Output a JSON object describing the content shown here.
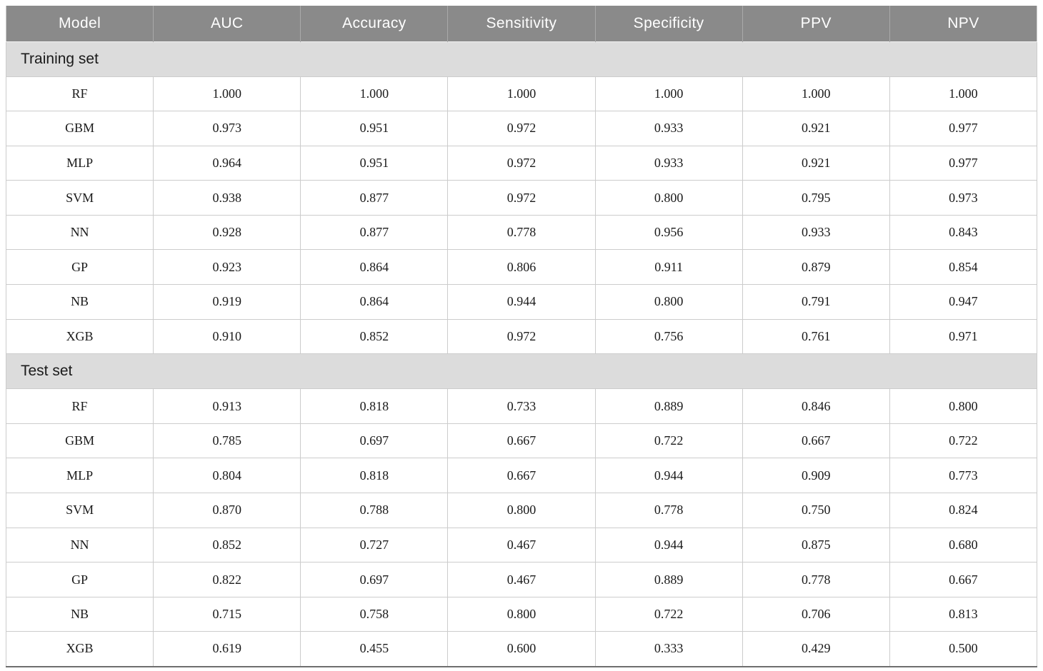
{
  "header": {
    "columns": [
      "Model",
      "AUC",
      "Accuracy",
      "Sensitivity",
      "Specificity",
      "PPV",
      "NPV"
    ]
  },
  "sections": [
    {
      "label": "Training set",
      "rows": [
        {
          "model": "RF",
          "values": [
            "1.000",
            "1.000",
            "1.000",
            "1.000",
            "1.000",
            "1.000"
          ]
        },
        {
          "model": "GBM",
          "values": [
            "0.973",
            "0.951",
            "0.972",
            "0.933",
            "0.921",
            "0.977"
          ]
        },
        {
          "model": "MLP",
          "values": [
            "0.964",
            "0.951",
            "0.972",
            "0.933",
            "0.921",
            "0.977"
          ]
        },
        {
          "model": "SVM",
          "values": [
            "0.938",
            "0.877",
            "0.972",
            "0.800",
            "0.795",
            "0.973"
          ]
        },
        {
          "model": "NN",
          "values": [
            "0.928",
            "0.877",
            "0.778",
            "0.956",
            "0.933",
            "0.843"
          ]
        },
        {
          "model": "GP",
          "values": [
            "0.923",
            "0.864",
            "0.806",
            "0.911",
            "0.879",
            "0.854"
          ]
        },
        {
          "model": "NB",
          "values": [
            "0.919",
            "0.864",
            "0.944",
            "0.800",
            "0.791",
            "0.947"
          ]
        },
        {
          "model": "XGB",
          "values": [
            "0.910",
            "0.852",
            "0.972",
            "0.756",
            "0.761",
            "0.971"
          ]
        }
      ]
    },
    {
      "label": "Test set",
      "rows": [
        {
          "model": "RF",
          "values": [
            "0.913",
            "0.818",
            "0.733",
            "0.889",
            "0.846",
            "0.800"
          ]
        },
        {
          "model": "GBM",
          "values": [
            "0.785",
            "0.697",
            "0.667",
            "0.722",
            "0.667",
            "0.722"
          ]
        },
        {
          "model": "MLP",
          "values": [
            "0.804",
            "0.818",
            "0.667",
            "0.944",
            "0.909",
            "0.773"
          ]
        },
        {
          "model": "SVM",
          "values": [
            "0.870",
            "0.788",
            "0.800",
            "0.778",
            "0.750",
            "0.824"
          ]
        },
        {
          "model": "NN",
          "values": [
            "0.852",
            "0.727",
            "0.467",
            "0.944",
            "0.875",
            "0.680"
          ]
        },
        {
          "model": "GP",
          "values": [
            "0.822",
            "0.697",
            "0.467",
            "0.889",
            "0.778",
            "0.667"
          ]
        },
        {
          "model": "NB",
          "values": [
            "0.715",
            "0.758",
            "0.800",
            "0.722",
            "0.706",
            "0.813"
          ]
        },
        {
          "model": "XGB",
          "values": [
            "0.619",
            "0.455",
            "0.600",
            "0.333",
            "0.429",
            "0.500"
          ]
        }
      ]
    }
  ],
  "colors": {
    "header_bg": "#8a8a8a",
    "header_text": "#ffffff",
    "header_divider": "#a9a9a9",
    "section_bg": "#dcdcdc",
    "row_border": "#cccccc",
    "bottom_border": "#6f6f6f",
    "text": "#1a1a1a"
  }
}
